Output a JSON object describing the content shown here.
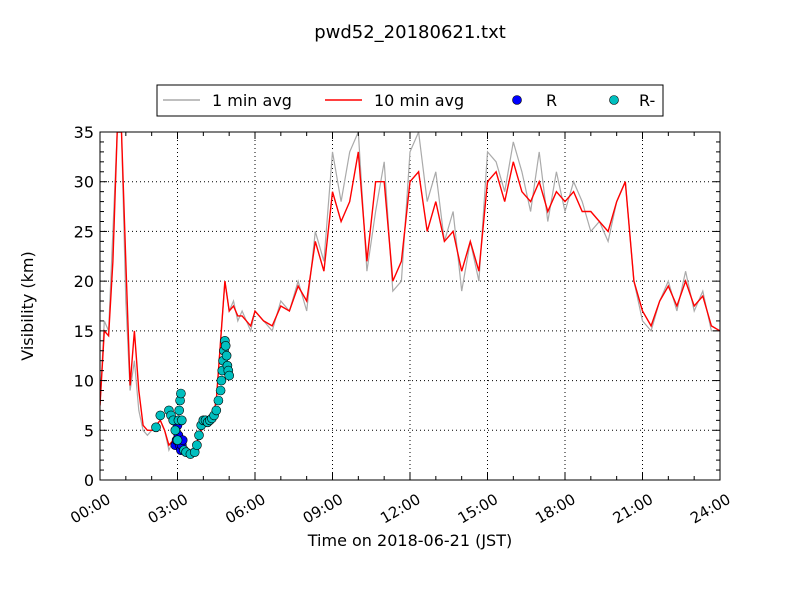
{
  "chart_data": {
    "type": "line",
    "title": "pwd52_20180621.txt",
    "xlabel": "Time on 2018-06-21 (JST)",
    "ylabel": "Visibility (km)",
    "xlim": [
      "00:00",
      "24:00"
    ],
    "ylim": [
      0,
      35
    ],
    "x_ticks": [
      "00:00",
      "03:00",
      "06:00",
      "09:00",
      "12:00",
      "15:00",
      "18:00",
      "21:00",
      "24:00"
    ],
    "y_ticks": [
      0,
      5,
      10,
      15,
      20,
      25,
      30,
      35
    ],
    "grid": true,
    "legend_position": "top-center",
    "series": [
      {
        "name": "1 min avg",
        "kind": "line",
        "color": "#aaaaaa",
        "x": [
          "00:00",
          "00:10",
          "00:20",
          "00:30",
          "00:40",
          "00:50",
          "01:00",
          "01:10",
          "01:20",
          "01:30",
          "01:40",
          "01:50",
          "02:00",
          "02:10",
          "02:20",
          "02:30",
          "02:40",
          "02:50",
          "03:00",
          "03:10",
          "03:20",
          "03:30",
          "03:40",
          "03:50",
          "04:00",
          "04:10",
          "04:20",
          "04:30",
          "04:40",
          "04:50",
          "05:00",
          "05:10",
          "05:20",
          "05:30",
          "05:40",
          "05:50",
          "06:00",
          "06:20",
          "06:40",
          "07:00",
          "07:20",
          "07:40",
          "08:00",
          "08:20",
          "08:40",
          "09:00",
          "09:20",
          "09:40",
          "10:00",
          "10:20",
          "10:40",
          "11:00",
          "11:20",
          "11:40",
          "12:00",
          "12:20",
          "12:40",
          "13:00",
          "13:20",
          "13:40",
          "14:00",
          "14:20",
          "14:40",
          "15:00",
          "15:20",
          "15:40",
          "16:00",
          "16:20",
          "16:40",
          "17:00",
          "17:20",
          "17:40",
          "18:00",
          "18:20",
          "18:40",
          "19:00",
          "19:20",
          "19:40",
          "20:00",
          "20:20",
          "20:40",
          "21:00",
          "21:20",
          "21:40",
          "22:00",
          "22:20",
          "22:40",
          "23:00",
          "23:20",
          "23:40",
          "24:00"
        ],
        "values": [
          7.5,
          16,
          15,
          25,
          35,
          35,
          18,
          9,
          12,
          7,
          5,
          4.5,
          5,
          5.5,
          6,
          5,
          3,
          4,
          3.5,
          3,
          2.5,
          2.5,
          3,
          4,
          5.5,
          6,
          6,
          8,
          14,
          20,
          17,
          18,
          16,
          17,
          16,
          15,
          17,
          16,
          15,
          18,
          17,
          20,
          17,
          25,
          22,
          33,
          28,
          33,
          35,
          21,
          27,
          32,
          19,
          20,
          33,
          35,
          28,
          31,
          24,
          27,
          19,
          24,
          20,
          33,
          32,
          29,
          34,
          31,
          27,
          33,
          26,
          31,
          27,
          30,
          28,
          25,
          26,
          24,
          28,
          30,
          20,
          16,
          15,
          18,
          20,
          17,
          21,
          17,
          19,
          15,
          15
        ]
      },
      {
        "name": "10 min avg",
        "kind": "line",
        "color": "#ff0000",
        "x": [
          "00:00",
          "00:10",
          "00:20",
          "00:30",
          "00:40",
          "00:50",
          "01:00",
          "01:10",
          "01:20",
          "01:30",
          "01:40",
          "01:50",
          "02:00",
          "02:10",
          "02:20",
          "02:30",
          "02:40",
          "02:50",
          "03:00",
          "03:10",
          "03:20",
          "03:30",
          "03:40",
          "03:50",
          "04:00",
          "04:10",
          "04:20",
          "04:30",
          "04:40",
          "04:50",
          "05:00",
          "05:10",
          "05:20",
          "05:30",
          "05:40",
          "05:50",
          "06:00",
          "06:20",
          "06:40",
          "07:00",
          "07:20",
          "07:40",
          "08:00",
          "08:20",
          "08:40",
          "09:00",
          "09:20",
          "09:40",
          "10:00",
          "10:20",
          "10:40",
          "11:00",
          "11:20",
          "11:40",
          "12:00",
          "12:20",
          "12:40",
          "13:00",
          "13:20",
          "13:40",
          "14:00",
          "14:20",
          "14:40",
          "15:00",
          "15:20",
          "15:40",
          "16:00",
          "16:20",
          "16:40",
          "17:00",
          "17:20",
          "17:40",
          "18:00",
          "18:20",
          "18:40",
          "19:00",
          "19:20",
          "19:40",
          "20:00",
          "20:20",
          "20:40",
          "21:00",
          "21:20",
          "21:40",
          "22:00",
          "22:20",
          "22:40",
          "23:00",
          "23:20",
          "23:40",
          "24:00"
        ],
        "values": [
          7.5,
          15,
          14.5,
          22,
          35,
          35,
          22,
          9.5,
          15,
          9,
          5.5,
          5,
          5,
          5.5,
          6,
          5,
          3.5,
          4,
          3.5,
          3,
          2.5,
          2.5,
          3,
          4.5,
          5.5,
          6,
          6,
          8,
          14,
          20,
          17,
          17.5,
          16.5,
          16.5,
          16,
          15.5,
          17,
          16,
          15.5,
          17.5,
          17,
          19.5,
          18,
          24,
          21,
          29,
          26,
          28,
          33,
          22,
          30,
          30,
          20,
          22,
          30,
          31,
          25,
          28,
          24,
          25,
          21,
          24,
          21,
          30,
          31,
          28,
          32,
          29,
          28,
          30,
          27,
          29,
          28,
          29,
          27,
          27,
          26,
          25,
          28,
          30,
          20,
          17,
          15.5,
          18,
          19.5,
          17.5,
          20,
          17.5,
          18.5,
          15.5,
          15
        ]
      },
      {
        "name": "R",
        "kind": "scatter",
        "color": "#0000ff",
        "x": [
          "02:55",
          "02:58",
          "03:00",
          "03:02",
          "03:05",
          "03:08",
          "03:10",
          "03:12"
        ],
        "values": [
          3.5,
          4,
          5.5,
          4.5,
          3.5,
          3,
          3.5,
          4
        ]
      },
      {
        "name": "R-",
        "kind": "scatter",
        "color": "#00bfbf",
        "x": [
          "02:10",
          "02:20",
          "02:40",
          "02:45",
          "02:50",
          "02:55",
          "03:00",
          "03:02",
          "03:04",
          "03:06",
          "03:08",
          "03:10",
          "03:15",
          "03:20",
          "03:30",
          "03:40",
          "03:45",
          "03:50",
          "03:55",
          "04:00",
          "04:05",
          "04:10",
          "04:15",
          "04:20",
          "04:25",
          "04:30",
          "04:35",
          "04:40",
          "04:42",
          "04:44",
          "04:46",
          "04:48",
          "04:50",
          "04:52",
          "04:54",
          "04:56",
          "04:58",
          "05:00"
        ],
        "values": [
          5.3,
          6.5,
          7,
          6.5,
          6,
          5,
          4,
          6,
          7,
          8,
          8.7,
          6,
          3,
          2.8,
          2.6,
          2.8,
          3.5,
          4.5,
          5.5,
          6,
          6,
          5.8,
          6,
          6.2,
          6.5,
          7,
          8,
          9,
          10,
          11,
          12,
          13,
          14,
          13.5,
          12.5,
          11.5,
          11,
          10.5
        ]
      }
    ]
  }
}
